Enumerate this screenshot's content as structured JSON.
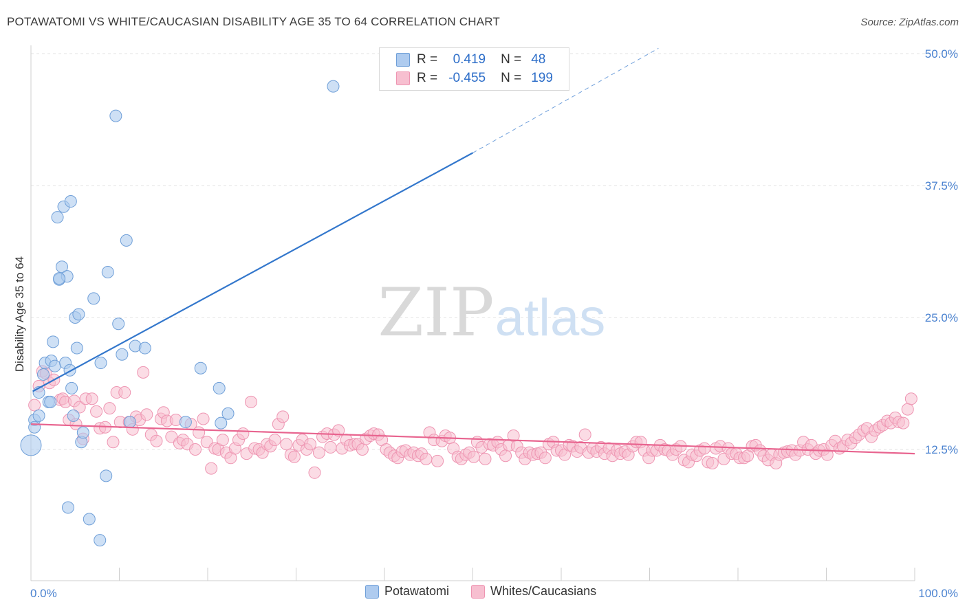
{
  "title": "POTAWATOMI VS WHITE/CAUCASIAN DISABILITY AGE 35 TO 64 CORRELATION CHART",
  "source": "Source: ZipAtlas.com",
  "watermark": {
    "zip": "ZIP",
    "atlas": "atlas"
  },
  "colors": {
    "blue_fill": "#aecbef",
    "blue_stroke": "#6f9fd8",
    "blue_line": "#3377cc",
    "pink_fill": "#f7bfd0",
    "pink_stroke": "#ee95b2",
    "pink_line": "#e8648f",
    "axis_text": "#4a82d0"
  },
  "legend_top": {
    "row1": {
      "r_label": "R =",
      "r_value": " 0.419",
      "n_label": "N =",
      "n_value": "48"
    },
    "row2": {
      "r_label": "R =",
      "r_value": "-0.455",
      "n_label": "N =",
      "n_value": "199"
    }
  },
  "legend_bottom": {
    "series1": "Potawatomi",
    "series2": "Whites/Caucasians"
  },
  "chart_data": {
    "type": "scatter",
    "title": "POTAWATOMI VS WHITE/CAUCASIAN DISABILITY AGE 35 TO 64 CORRELATION CHART",
    "xlabel": "",
    "ylabel": "Disability Age 35 to 64",
    "x_tick_labels": [
      "0.0%",
      "100.0%"
    ],
    "y_tick_labels": [
      "12.5%",
      "25.0%",
      "37.5%",
      "50.0%"
    ],
    "y_ticks": [
      12.5,
      25.0,
      37.5,
      50.0
    ],
    "xlim": [
      0,
      100
    ],
    "ylim": [
      0,
      52
    ],
    "grid": true,
    "series": [
      {
        "name": "Potawatomi",
        "r": 0.419,
        "n": 48,
        "trend": {
          "x0": 0.2,
          "y0": 18.0,
          "x_solid_end": 50.0,
          "y_solid_end": 40.6,
          "x_dash_end": 71.0,
          "y_dash_end": 50.5
        },
        "points": [
          [
            0.0,
            12.9
          ],
          [
            0.4,
            15.3
          ],
          [
            0.4,
            14.6
          ],
          [
            0.9,
            15.7
          ],
          [
            0.9,
            17.9
          ],
          [
            1.4,
            19.6
          ],
          [
            1.6,
            20.7
          ],
          [
            2.0,
            17.0
          ],
          [
            2.2,
            17.0
          ],
          [
            2.3,
            20.9
          ],
          [
            2.5,
            22.7
          ],
          [
            2.7,
            20.4
          ],
          [
            3.0,
            34.5
          ],
          [
            3.2,
            28.6
          ],
          [
            3.5,
            29.8
          ],
          [
            3.7,
            35.5
          ],
          [
            3.9,
            20.7
          ],
          [
            4.1,
            28.9
          ],
          [
            4.2,
            7.0
          ],
          [
            4.4,
            20.0
          ],
          [
            4.6,
            18.3
          ],
          [
            4.8,
            15.7
          ],
          [
            5.0,
            25.0
          ],
          [
            5.2,
            22.1
          ],
          [
            5.4,
            25.3
          ],
          [
            5.7,
            13.2
          ],
          [
            5.9,
            14.1
          ],
          [
            6.6,
            5.9
          ],
          [
            7.1,
            26.8
          ],
          [
            7.8,
            3.9
          ],
          [
            7.9,
            20.7
          ],
          [
            8.5,
            10.0
          ],
          [
            8.7,
            29.3
          ],
          [
            9.6,
            44.1
          ],
          [
            9.9,
            24.4
          ],
          [
            10.3,
            21.5
          ],
          [
            10.8,
            32.3
          ],
          [
            11.2,
            15.1
          ],
          [
            11.8,
            22.3
          ],
          [
            12.9,
            22.1
          ],
          [
            17.5,
            15.1
          ],
          [
            19.2,
            20.2
          ],
          [
            21.3,
            18.3
          ],
          [
            21.5,
            15.0
          ],
          [
            22.3,
            15.9
          ],
          [
            34.2,
            46.9
          ],
          [
            4.5,
            36.0
          ],
          [
            3.2,
            28.7
          ]
        ]
      },
      {
        "name": "Whites/Caucasians",
        "r": -0.455,
        "n": 199,
        "trend": {
          "x0": 0.0,
          "y0": 14.9,
          "x1": 100.0,
          "y1": 12.1
        },
        "points": [
          [
            0.4,
            16.7
          ],
          [
            0.9,
            18.5
          ],
          [
            1.3,
            19.9
          ],
          [
            1.7,
            19.7
          ],
          [
            2.1,
            18.8
          ],
          [
            2.6,
            19.1
          ],
          [
            3.3,
            17.2
          ],
          [
            3.6,
            17.3
          ],
          [
            3.9,
            17.0
          ],
          [
            4.3,
            15.3
          ],
          [
            4.9,
            17.1
          ],
          [
            5.1,
            14.9
          ],
          [
            5.5,
            16.5
          ],
          [
            5.9,
            13.5
          ],
          [
            6.2,
            17.3
          ],
          [
            6.9,
            17.3
          ],
          [
            7.4,
            16.1
          ],
          [
            7.8,
            14.5
          ],
          [
            8.4,
            14.6
          ],
          [
            8.9,
            16.4
          ],
          [
            9.3,
            13.2
          ],
          [
            9.7,
            17.9
          ],
          [
            10.1,
            15.1
          ],
          [
            10.6,
            17.9
          ],
          [
            11.1,
            15.1
          ],
          [
            11.5,
            14.4
          ],
          [
            11.9,
            15.6
          ],
          [
            12.3,
            15.3
          ],
          [
            12.7,
            19.8
          ],
          [
            13.1,
            15.8
          ],
          [
            13.6,
            13.9
          ],
          [
            14.2,
            13.3
          ],
          [
            14.7,
            15.4
          ],
          [
            15.0,
            16.0
          ],
          [
            15.4,
            15.2
          ],
          [
            15.9,
            13.7
          ],
          [
            16.4,
            15.3
          ],
          [
            16.8,
            13.1
          ],
          [
            17.2,
            13.4
          ],
          [
            17.7,
            13.0
          ],
          [
            18.1,
            14.9
          ],
          [
            18.6,
            12.5
          ],
          [
            19.0,
            14.1
          ],
          [
            19.5,
            15.4
          ],
          [
            19.9,
            13.2
          ],
          [
            20.4,
            10.7
          ],
          [
            20.8,
            12.6
          ],
          [
            21.2,
            12.5
          ],
          [
            21.7,
            13.4
          ],
          [
            22.1,
            12.2
          ],
          [
            22.6,
            11.7
          ],
          [
            23.1,
            12.6
          ],
          [
            23.5,
            13.4
          ],
          [
            24.0,
            14.0
          ],
          [
            24.4,
            12.1
          ],
          [
            24.9,
            17.0
          ],
          [
            25.3,
            12.6
          ],
          [
            25.8,
            12.5
          ],
          [
            26.2,
            12.2
          ],
          [
            26.7,
            13.0
          ],
          [
            27.1,
            12.8
          ],
          [
            27.6,
            13.4
          ],
          [
            28.0,
            14.9
          ],
          [
            28.5,
            15.6
          ],
          [
            28.9,
            13.0
          ],
          [
            29.4,
            12.0
          ],
          [
            29.8,
            11.8
          ],
          [
            30.3,
            12.9
          ],
          [
            30.7,
            13.4
          ],
          [
            31.2,
            12.5
          ],
          [
            31.6,
            13.0
          ],
          [
            32.1,
            10.3
          ],
          [
            32.6,
            12.2
          ],
          [
            33.0,
            13.7
          ],
          [
            33.5,
            14.0
          ],
          [
            33.9,
            12.7
          ],
          [
            34.3,
            13.9
          ],
          [
            34.8,
            14.3
          ],
          [
            35.2,
            12.6
          ],
          [
            35.7,
            13.4
          ],
          [
            36.1,
            12.9
          ],
          [
            36.6,
            13.0
          ],
          [
            37.0,
            13.0
          ],
          [
            37.5,
            12.5
          ],
          [
            37.9,
            13.5
          ],
          [
            38.4,
            13.8
          ],
          [
            38.8,
            14.0
          ],
          [
            39.3,
            13.9
          ],
          [
            39.7,
            13.4
          ],
          [
            40.2,
            12.5
          ],
          [
            40.6,
            12.2
          ],
          [
            41.1,
            11.9
          ],
          [
            41.5,
            11.7
          ],
          [
            42.0,
            12.3
          ],
          [
            42.4,
            12.4
          ],
          [
            42.9,
            12.0
          ],
          [
            43.3,
            12.2
          ],
          [
            43.8,
            11.9
          ],
          [
            44.2,
            12.1
          ],
          [
            44.7,
            11.6
          ],
          [
            45.1,
            14.1
          ],
          [
            45.6,
            13.4
          ],
          [
            46.0,
            11.4
          ],
          [
            46.5,
            13.3
          ],
          [
            46.9,
            13.8
          ],
          [
            47.4,
            13.6
          ],
          [
            47.8,
            12.6
          ],
          [
            48.3,
            11.8
          ],
          [
            48.7,
            11.6
          ],
          [
            49.2,
            12.0
          ],
          [
            49.6,
            12.2
          ],
          [
            50.1,
            11.8
          ],
          [
            50.5,
            13.2
          ],
          [
            51.0,
            12.7
          ],
          [
            51.4,
            11.6
          ],
          [
            51.9,
            13.0
          ],
          [
            52.3,
            12.9
          ],
          [
            52.8,
            13.2
          ],
          [
            53.2,
            12.5
          ],
          [
            53.7,
            11.9
          ],
          [
            54.1,
            12.9
          ],
          [
            54.6,
            13.8
          ],
          [
            55.0,
            12.8
          ],
          [
            55.5,
            12.2
          ],
          [
            55.9,
            11.6
          ],
          [
            56.4,
            12.2
          ],
          [
            56.8,
            12.0
          ],
          [
            57.3,
            12.1
          ],
          [
            57.7,
            12.2
          ],
          [
            58.2,
            11.7
          ],
          [
            58.6,
            13.0
          ],
          [
            59.1,
            13.2
          ],
          [
            59.5,
            12.4
          ],
          [
            60.0,
            12.4
          ],
          [
            60.4,
            12.0
          ],
          [
            60.9,
            12.9
          ],
          [
            61.3,
            12.8
          ],
          [
            61.8,
            12.3
          ],
          [
            62.2,
            12.7
          ],
          [
            62.7,
            13.9
          ],
          [
            63.1,
            12.2
          ],
          [
            63.6,
            12.6
          ],
          [
            64.0,
            12.3
          ],
          [
            64.5,
            12.7
          ],
          [
            64.9,
            12.1
          ],
          [
            65.4,
            12.6
          ],
          [
            65.8,
            11.9
          ],
          [
            66.3,
            12.4
          ],
          [
            66.7,
            12.1
          ],
          [
            67.2,
            12.3
          ],
          [
            67.6,
            12.0
          ],
          [
            68.1,
            12.8
          ],
          [
            68.5,
            13.2
          ],
          [
            69.0,
            13.2
          ],
          [
            69.4,
            12.4
          ],
          [
            69.9,
            11.7
          ],
          [
            70.3,
            12.4
          ],
          [
            70.8,
            12.4
          ],
          [
            71.2,
            12.9
          ],
          [
            71.7,
            12.5
          ],
          [
            72.1,
            12.4
          ],
          [
            72.6,
            12.0
          ],
          [
            73.0,
            12.5
          ],
          [
            73.5,
            12.8
          ],
          [
            73.9,
            11.5
          ],
          [
            74.4,
            11.3
          ],
          [
            74.8,
            12.0
          ],
          [
            75.3,
            11.9
          ],
          [
            75.7,
            12.4
          ],
          [
            76.2,
            12.6
          ],
          [
            76.6,
            11.3
          ],
          [
            77.1,
            11.2
          ],
          [
            77.5,
            12.6
          ],
          [
            78.0,
            12.8
          ],
          [
            78.4,
            11.6
          ],
          [
            78.9,
            12.6
          ],
          [
            79.3,
            12.1
          ],
          [
            79.8,
            12.1
          ],
          [
            80.2,
            11.7
          ],
          [
            80.7,
            11.7
          ],
          [
            81.1,
            11.9
          ],
          [
            81.6,
            12.8
          ],
          [
            82.0,
            12.9
          ],
          [
            82.5,
            12.4
          ],
          [
            82.9,
            11.9
          ],
          [
            83.4,
            11.5
          ],
          [
            83.8,
            12.0
          ],
          [
            84.3,
            11.2
          ],
          [
            84.7,
            12.0
          ],
          [
            85.2,
            12.2
          ],
          [
            85.6,
            12.3
          ],
          [
            86.1,
            12.4
          ],
          [
            86.5,
            12.0
          ],
          [
            87.0,
            12.4
          ],
          [
            87.4,
            13.2
          ],
          [
            87.9,
            12.5
          ],
          [
            88.3,
            12.9
          ],
          [
            88.8,
            12.1
          ],
          [
            89.2,
            12.4
          ],
          [
            89.7,
            12.5
          ],
          [
            90.1,
            12.0
          ],
          [
            90.6,
            12.9
          ],
          [
            91.0,
            13.3
          ],
          [
            91.5,
            12.6
          ],
          [
            91.9,
            12.8
          ],
          [
            92.4,
            13.4
          ],
          [
            92.8,
            13.1
          ],
          [
            93.3,
            13.6
          ],
          [
            93.7,
            13.9
          ],
          [
            94.2,
            14.3
          ],
          [
            94.6,
            14.5
          ],
          [
            95.1,
            13.7
          ],
          [
            95.5,
            14.3
          ],
          [
            96.0,
            14.6
          ],
          [
            96.4,
            14.8
          ],
          [
            96.9,
            15.2
          ],
          [
            97.3,
            15.0
          ],
          [
            97.8,
            15.5
          ],
          [
            98.2,
            15.1
          ],
          [
            98.7,
            15.0
          ],
          [
            99.2,
            16.3
          ],
          [
            99.6,
            17.3
          ]
        ]
      }
    ]
  }
}
